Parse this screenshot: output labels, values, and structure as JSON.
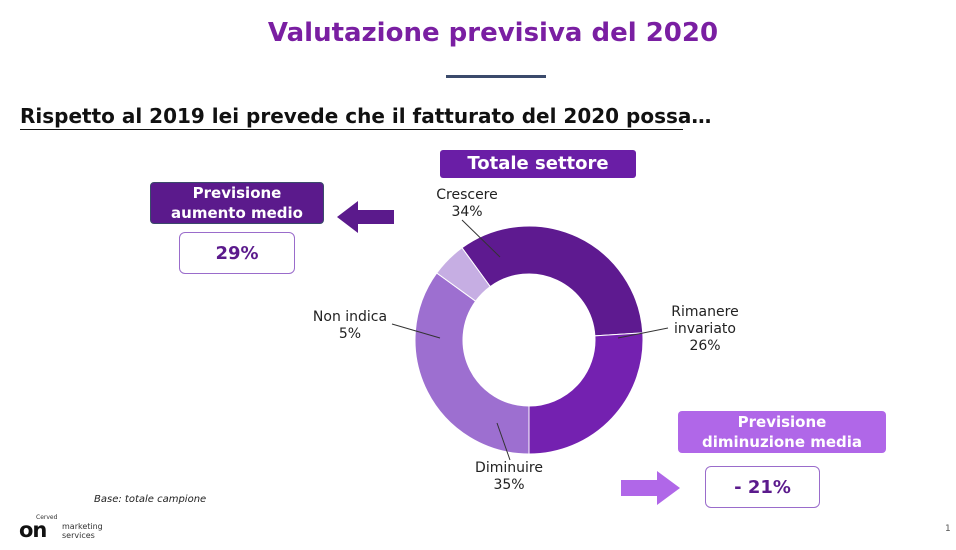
{
  "header": {
    "title": "Valutazione previsiva del 2020",
    "question": "Rispetto al 2019 lei prevede che il fatturato del 2020 possa…"
  },
  "total_label": "Totale settore",
  "increase": {
    "label_line1": "Previsione",
    "label_line2": "aumento medio",
    "value": "29%"
  },
  "decrease": {
    "label_line1": "Previsione",
    "label_line2": "diminuzione media",
    "value": "- 21%"
  },
  "chart_data": {
    "type": "pie",
    "donut": true,
    "slices": [
      {
        "label": "Crescere",
        "value": 34,
        "display": "34%",
        "color": "#5e1a90"
      },
      {
        "label": "Rimanere invariato",
        "value": 26,
        "display": "26%",
        "color": "#7421b0"
      },
      {
        "label": "Diminuire",
        "value": 35,
        "display": "35%",
        "color": "#9d6fd0"
      },
      {
        "label": "Non indica",
        "value": 5,
        "display": "5%",
        "color": "#c6aee3"
      }
    ]
  },
  "labels": {
    "crescere": {
      "name": "Crescere",
      "pct": "34%"
    },
    "invariato": {
      "name1": "Rimanere",
      "name2": "invariato",
      "pct": "26%"
    },
    "diminuire": {
      "name": "Diminuire",
      "pct": "35%"
    },
    "nonindica": {
      "name": "Non indica",
      "pct": "5%"
    }
  },
  "footer": {
    "base_note": "Base: totale campione",
    "logo_small": "Cerved",
    "logo_main": "on",
    "logo_line1": "marketing",
    "logo_line2": "services",
    "page_number": "1"
  },
  "colors": {
    "title": "#7a1fa2",
    "dark_purple": "#5b1a8c",
    "light_purple": "#b067e8"
  }
}
